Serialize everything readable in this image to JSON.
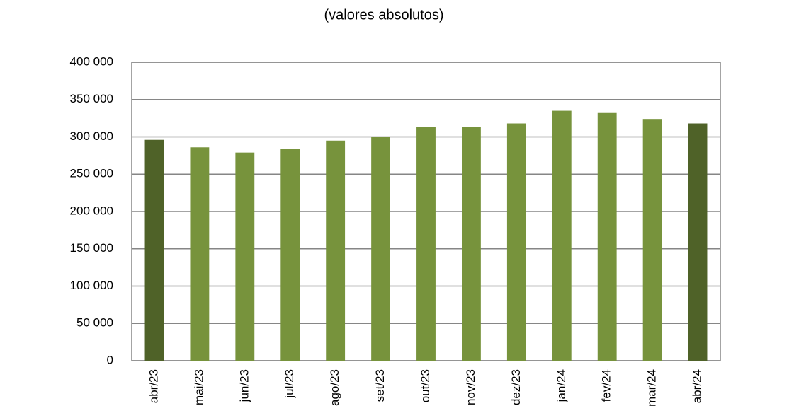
{
  "chart_data": {
    "type": "bar",
    "title": "(valores absolutos)",
    "categories": [
      "abr/23",
      "mai/23",
      "jun/23",
      "jul/23",
      "ago/23",
      "set/23",
      "out/23",
      "nov/23",
      "dez/23",
      "jan/24",
      "fev/24",
      "mar/24",
      "abr/24"
    ],
    "values": [
      296000,
      286000,
      279000,
      284000,
      295000,
      300000,
      313000,
      313000,
      318000,
      335000,
      332000,
      324000,
      318000
    ],
    "colors": [
      "#4f6228",
      "#77933c",
      "#77933c",
      "#77933c",
      "#77933c",
      "#77933c",
      "#77933c",
      "#77933c",
      "#77933c",
      "#77933c",
      "#77933c",
      "#77933c",
      "#4f6228"
    ],
    "ylim": [
      0,
      400000
    ],
    "yticks": [
      0,
      {
        "value": 50000,
        "label": "50 000"
      },
      {
        "value": 100000,
        "label": "100 000"
      },
      {
        "value": 150000,
        "label": "150 000"
      },
      {
        "value": 200000,
        "label": "200 000"
      },
      {
        "value": 250000,
        "label": "250 000"
      },
      {
        "value": 300000,
        "label": "300 000"
      },
      {
        "value": 350000,
        "label": "350 000"
      },
      {
        "value": 400000,
        "label": "400 000"
      }
    ],
    "grid": true
  }
}
